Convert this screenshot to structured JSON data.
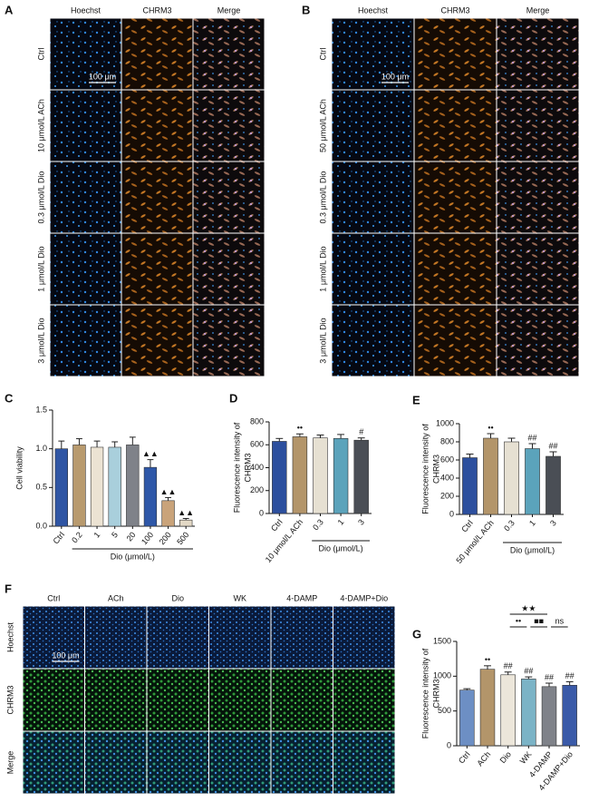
{
  "panel_a": {
    "label": "A",
    "columns": [
      "Hoechst",
      "CHRM3",
      "Merge"
    ],
    "rows": [
      "Ctrl",
      "10 μmol/L ACh",
      "0.3 μmol/L Dio",
      "1 μmol/L Dio",
      "3 μmol/L Dio"
    ],
    "scale_bar": "100 μm"
  },
  "panel_b": {
    "label": "B",
    "columns": [
      "Hoechst",
      "CHRM3",
      "Merge"
    ],
    "rows": [
      "Ctrl",
      "50 μmol/L ACh",
      "0.3 μmol/L Dio",
      "1 μmol/L Dio",
      "3 μmol/L Dio"
    ],
    "scale_bar": "100 μm"
  },
  "panel_f": {
    "label": "F",
    "columns": [
      "Ctrl",
      "ACh",
      "Dio",
      "WK",
      "4-DAMP",
      "4-DAMP+Dio"
    ],
    "rows": [
      "Hoechst",
      "CHRM3",
      "Merge"
    ],
    "scale_bar": "100 μm"
  },
  "chart_data": [
    {
      "type": "bar",
      "panel_label": "C",
      "ylabel": [
        "Cell viability"
      ],
      "categories": [
        "Ctrl",
        "0.2",
        "1",
        "5",
        "20",
        "100",
        "200",
        "500"
      ],
      "values": [
        1.0,
        1.05,
        1.02,
        1.02,
        1.05,
        0.76,
        0.33,
        0.08
      ],
      "errors": [
        0.1,
        0.08,
        0.08,
        0.07,
        0.1,
        0.1,
        0.04,
        0.02
      ],
      "colors": [
        "#2f55a4",
        "#b89a6e",
        "#ece3d3",
        "#a9cfdc",
        "#7f8289",
        "#2e57a8",
        "#c9a37a",
        "#e3d9c6"
      ],
      "annotations": [
        null,
        null,
        null,
        null,
        null,
        "▲▲",
        "▲▲",
        "▲▲"
      ],
      "ylim": [
        0,
        1.5
      ],
      "yticks": [
        {
          "value": 0,
          "label": "0.0"
        },
        0.5,
        {
          "value": 1,
          "label": "1.0"
        },
        1.5
      ],
      "group_label": "Dio (μmol/L)"
    },
    {
      "type": "bar",
      "panel_label": "D",
      "ylabel": [
        "Fluorescence intensity of",
        "CHRM3"
      ],
      "categories": [
        "Ctrl",
        "10 μmol/L ACh",
        "0.3",
        "1",
        "3"
      ],
      "values": [
        630,
        670,
        660,
        655,
        640
      ],
      "errors": [
        25,
        25,
        25,
        35,
        20
      ],
      "colors": [
        "#2c4f9e",
        "#b3956a",
        "#e6e0d2",
        "#5ba3bb",
        "#4a4e55"
      ],
      "annotations": [
        null,
        "••",
        null,
        null,
        "#"
      ],
      "ylim": [
        0,
        800
      ],
      "yticks": [
        0,
        200,
        400,
        600,
        800
      ],
      "group_label": "Dio (μmol/L)"
    },
    {
      "type": "bar",
      "panel_label": "E",
      "ylabel": [
        "Fluorescence intensity of",
        "CHRM3"
      ],
      "categories": [
        "Ctrl",
        "50 μmol/L ACh",
        "0.3",
        "1",
        "3"
      ],
      "values": [
        625,
        840,
        800,
        725,
        640
      ],
      "errors": [
        40,
        50,
        40,
        55,
        50
      ],
      "colors": [
        "#2c4f9e",
        "#b3956a",
        "#e6e0d2",
        "#5ba3bb",
        "#4a4e55"
      ],
      "annotations": [
        null,
        "••",
        null,
        "##",
        "##"
      ],
      "ylim": [
        0,
        1000
      ],
      "yticks": [
        0,
        200,
        400,
        600,
        800,
        1000
      ],
      "group_label": "Dio (μmol/L)"
    },
    {
      "type": "bar",
      "panel_label": "G",
      "ylabel": [
        "Fluorescence intensity of",
        "CHRM3"
      ],
      "categories": [
        "Ctrl",
        "ACh",
        "Dio",
        "WK",
        "4-DAMP",
        "4-DAMP+Dio"
      ],
      "values": [
        800,
        1100,
        1020,
        960,
        850,
        870
      ],
      "errors": [
        20,
        50,
        40,
        30,
        50,
        50
      ],
      "colors": [
        "#6d8fc4",
        "#b3956a",
        "#ece6da",
        "#7bb3c6",
        "#7f8289",
        "#3a5aa8"
      ],
      "annotations": [
        null,
        "••",
        "##",
        "##",
        "##",
        "##"
      ],
      "ylim": [
        0,
        1500
      ],
      "yticks": [
        0,
        500,
        1000,
        1500
      ],
      "comparisons": [
        {
          "label": "★★"
        },
        {
          "label": "••"
        },
        {
          "label": "■■"
        },
        {
          "label": "ns"
        }
      ]
    }
  ]
}
